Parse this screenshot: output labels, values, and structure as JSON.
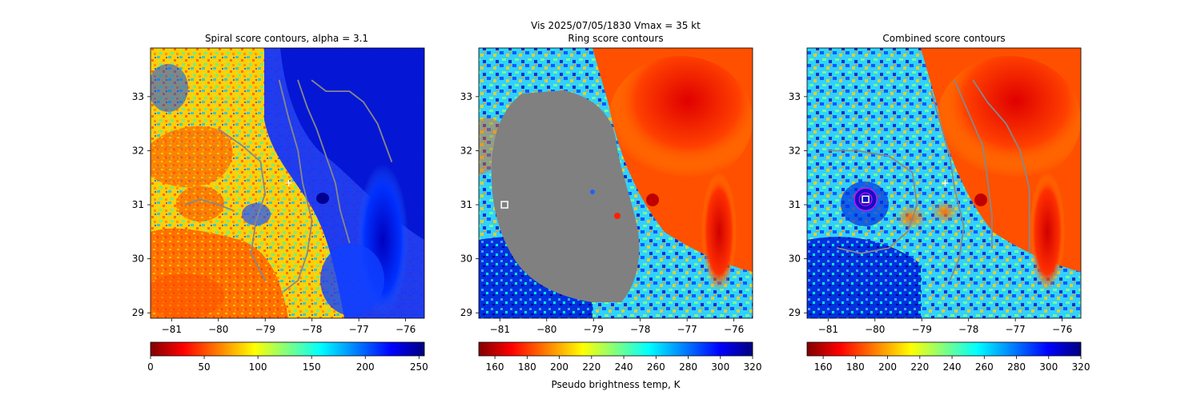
{
  "figure": {
    "suptitle_line1": "Vis  2025/07/05/1830    Vmax = 35 kt",
    "colorbar_label": "Pseudo brightness temp, K"
  },
  "chart_data": [
    {
      "type": "heatmap",
      "title": "Spiral score contours, alpha =  3.1",
      "xlabel": "",
      "ylabel": "",
      "xlim": [
        -81.45,
        -75.6
      ],
      "ylim": [
        28.9,
        33.9
      ],
      "xticks": [
        -81,
        -80,
        -79,
        -78,
        -77,
        -76
      ],
      "yticks": [
        29,
        30,
        31,
        32,
        33
      ],
      "colormap": "jet_r",
      "colorbar": {
        "min": 0,
        "max": 255,
        "ticks": [
          0,
          50,
          100,
          150,
          200,
          250
        ]
      },
      "grid": false,
      "overlays": {
        "contour_color": "#888888",
        "center_marker": {
          "lon": -78.5,
          "lat": 31.4,
          "symbol": "+",
          "color": "#ffffff"
        },
        "contours": [
          {
            "name": "c1",
            "lonlat": [
              [
                -78.3,
                33.3
              ],
              [
                -78.1,
                32.8
              ],
              [
                -77.9,
                32.4
              ],
              [
                -77.7,
                31.9
              ],
              [
                -77.5,
                31.4
              ],
              [
                -77.4,
                30.9
              ],
              [
                -77.2,
                30.3
              ]
            ]
          },
          {
            "name": "c2",
            "lonlat": [
              [
                -78.0,
                33.3
              ],
              [
                -77.7,
                33.1
              ],
              [
                -77.2,
                33.1
              ],
              [
                -76.9,
                32.9
              ],
              [
                -76.6,
                32.5
              ],
              [
                -76.3,
                31.8
              ]
            ]
          },
          {
            "name": "c3",
            "lonlat": [
              [
                -78.7,
                33.3
              ],
              [
                -78.5,
                32.6
              ],
              [
                -78.3,
                32.0
              ],
              [
                -78.2,
                31.4
              ],
              [
                -78.0,
                30.7
              ],
              [
                -78.1,
                30.1
              ],
              [
                -78.3,
                29.6
              ],
              [
                -78.6,
                29.4
              ]
            ]
          },
          {
            "name": "c4",
            "lonlat": [
              [
                -80.0,
                32.4
              ],
              [
                -79.5,
                32.1
              ],
              [
                -79.1,
                31.8
              ],
              [
                -79.0,
                31.2
              ],
              [
                -79.2,
                30.7
              ],
              [
                -79.3,
                30.1
              ],
              [
                -79.0,
                29.6
              ]
            ]
          },
          {
            "name": "c5",
            "lonlat": [
              [
                -80.7,
                31.0
              ],
              [
                -80.4,
                31.1
              ],
              [
                -80.0,
                31.0
              ],
              [
                -79.7,
                30.9
              ]
            ]
          }
        ]
      }
    },
    {
      "type": "heatmap",
      "title": "Ring score contours",
      "xlabel": "Pseudo brightness temp, K",
      "ylabel": "",
      "xlim": [
        -81.45,
        -75.6
      ],
      "ylim": [
        28.9,
        33.9
      ],
      "xticks": [
        -81,
        -80,
        -79,
        -78,
        -77,
        -76
      ],
      "yticks": [
        29,
        30,
        31,
        32,
        33
      ],
      "colormap": "jet_r",
      "colorbar": {
        "min": 150,
        "max": 320,
        "ticks": [
          160,
          180,
          200,
          220,
          240,
          260,
          280,
          300,
          320
        ]
      },
      "grid": false,
      "overlays": {
        "masked_region_color": "#808080",
        "center_marker": {
          "lon": -80.9,
          "lat": 31.0,
          "symbol": "square",
          "color": "#ffffff"
        }
      }
    },
    {
      "type": "heatmap",
      "title": "Combined score contours",
      "xlabel": "",
      "ylabel": "",
      "xlim": [
        -81.45,
        -75.6
      ],
      "ylim": [
        28.9,
        33.9
      ],
      "xticks": [
        -81,
        -80,
        -79,
        -78,
        -77,
        -76
      ],
      "yticks": [
        29,
        30,
        31,
        32,
        33
      ],
      "colormap": "jet_r",
      "colorbar": {
        "min": 150,
        "max": 320,
        "ticks": [
          160,
          180,
          200,
          220,
          240,
          260,
          280,
          300,
          320
        ]
      },
      "grid": false,
      "overlays": {
        "contour_color": "#888888",
        "ring_color": "#ff00ff",
        "center_marker": {
          "lon": -80.2,
          "lat": 31.1,
          "symbol": "square",
          "color": "#ffffff"
        },
        "secondary_marker": {
          "lon": -78.5,
          "lat": 31.4,
          "symbol": "+",
          "color": "#ffffff"
        },
        "contours": [
          {
            "name": "c1",
            "lonlat": [
              [
                -78.3,
                33.3
              ],
              [
                -78.0,
                32.7
              ],
              [
                -77.7,
                32.1
              ],
              [
                -77.6,
                31.5
              ],
              [
                -77.5,
                30.8
              ],
              [
                -77.5,
                30.2
              ]
            ]
          },
          {
            "name": "c2",
            "lonlat": [
              [
                -77.9,
                33.3
              ],
              [
                -77.6,
                32.9
              ],
              [
                -77.2,
                32.5
              ],
              [
                -76.9,
                32.0
              ],
              [
                -76.7,
                31.3
              ],
              [
                -76.7,
                30.1
              ]
            ]
          },
          {
            "name": "c3",
            "lonlat": [
              [
                -78.8,
                33.1
              ],
              [
                -78.6,
                32.5
              ],
              [
                -78.4,
                31.9
              ],
              [
                -78.3,
                31.3
              ],
              [
                -78.1,
                30.6
              ],
              [
                -78.2,
                30.0
              ],
              [
                -78.4,
                29.6
              ]
            ]
          },
          {
            "name": "c4",
            "lonlat": [
              [
                -81.0,
                32.0
              ],
              [
                -80.4,
                32.0
              ],
              [
                -79.7,
                31.9
              ],
              [
                -79.2,
                31.6
              ],
              [
                -79.1,
                31.0
              ],
              [
                -79.3,
                30.5
              ],
              [
                -79.7,
                30.2
              ],
              [
                -80.3,
                30.1
              ],
              [
                -80.8,
                30.2
              ]
            ]
          }
        ]
      }
    }
  ]
}
